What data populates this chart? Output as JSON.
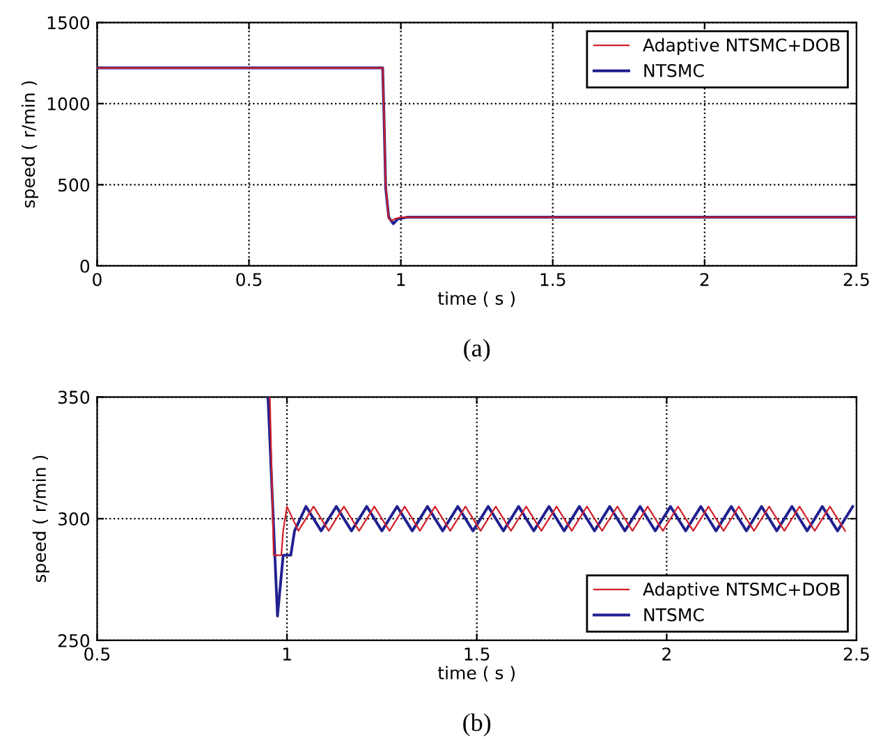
{
  "chart_data": [
    {
      "type": "line",
      "xlabel": "time ( s )",
      "ylabel": "speed ( r/min )",
      "annotations": [
        "(a)"
      ],
      "xlim": [
        0,
        2.5
      ],
      "ylim": [
        0,
        1500
      ],
      "xticks": [
        0,
        0.5,
        1,
        1.5,
        2,
        2.5
      ],
      "yticks": [
        0,
        500,
        1000,
        1500
      ],
      "grid": true,
      "legend": "top right",
      "line_style": "solid",
      "series": [
        {
          "name": "Adaptive NTSMC+DOB",
          "color": "#d0202a",
          "x": [
            0,
            0.2,
            0.4,
            0.6,
            0.8,
            0.94,
            0.945,
            0.95,
            0.96,
            0.97,
            0.98,
            1.0,
            1.5,
            2.0,
            2.5
          ],
          "values": [
            1220,
            1220,
            1220,
            1220,
            1220,
            1220,
            900,
            500,
            290,
            280,
            290,
            300,
            300,
            300,
            300
          ]
        },
        {
          "name": "NTSMC",
          "color": "#202090",
          "x": [
            0,
            0.2,
            0.4,
            0.6,
            0.8,
            0.94,
            0.945,
            0.95,
            0.96,
            0.975,
            0.99,
            1.02,
            1.5,
            2.0,
            2.5
          ],
          "values": [
            1220,
            1220,
            1220,
            1220,
            1220,
            1220,
            880,
            480,
            300,
            260,
            290,
            300,
            300,
            300,
            300
          ]
        }
      ]
    },
    {
      "type": "line",
      "xlabel": "time ( s )",
      "ylabel": "speed ( r/min )",
      "annotations": [
        "(b)"
      ],
      "xlim": [
        0.5,
        2.5
      ],
      "ylim": [
        250,
        350
      ],
      "xticks": [
        0.5,
        1,
        1.5,
        2,
        2.5
      ],
      "yticks": [
        250,
        300,
        350
      ],
      "grid": true,
      "legend": "bottom right",
      "line_style": "solid",
      "series": [
        {
          "name": "Adaptive NTSMC+DOB",
          "color": "#d0202a",
          "x": [
            0.955,
            0.965,
            0.985,
            0.99,
            1.0,
            1.03,
            1.07,
            1.11,
            1.15,
            1.19,
            1.23,
            1.27,
            1.31,
            1.35,
            1.39,
            1.43,
            1.47,
            1.51,
            1.55,
            1.59,
            1.63,
            1.67,
            1.71,
            1.75,
            1.79,
            1.83,
            1.87,
            1.91,
            1.95,
            1.99,
            2.03,
            2.07,
            2.11,
            2.15,
            2.19,
            2.23,
            2.27,
            2.31,
            2.35,
            2.39,
            2.43,
            2.47
          ],
          "values": [
            350,
            285,
            285,
            295,
            305,
            295,
            305,
            295,
            305,
            295,
            305,
            295,
            305,
            295,
            305,
            295,
            305,
            295,
            305,
            295,
            305,
            295,
            305,
            295,
            305,
            295,
            305,
            295,
            305,
            295,
            305,
            295,
            305,
            295,
            305,
            295,
            305,
            295,
            305,
            295,
            305,
            295
          ]
        },
        {
          "name": "NTSMC",
          "color": "#202090",
          "x": [
            0.95,
            0.975,
            0.99,
            1.01,
            1.02,
            1.05,
            1.09,
            1.13,
            1.17,
            1.21,
            1.25,
            1.29,
            1.33,
            1.37,
            1.41,
            1.45,
            1.49,
            1.53,
            1.57,
            1.61,
            1.65,
            1.69,
            1.73,
            1.77,
            1.81,
            1.85,
            1.89,
            1.93,
            1.97,
            2.01,
            2.05,
            2.09,
            2.13,
            2.17,
            2.21,
            2.25,
            2.29,
            2.33,
            2.37,
            2.41,
            2.45,
            2.49
          ],
          "values": [
            350,
            260,
            285,
            285,
            295,
            305,
            295,
            305,
            295,
            305,
            295,
            305,
            295,
            305,
            295,
            305,
            295,
            305,
            295,
            305,
            295,
            305,
            295,
            305,
            295,
            305,
            295,
            305,
            295,
            305,
            295,
            305,
            295,
            305,
            295,
            305,
            295,
            305,
            295,
            305,
            295,
            305
          ]
        }
      ]
    }
  ]
}
